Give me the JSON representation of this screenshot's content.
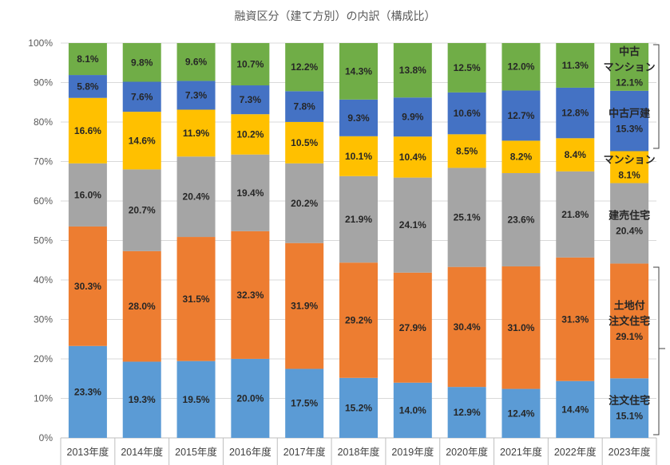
{
  "chart_data": {
    "type": "bar",
    "stacking": "percent",
    "title": "融資区分（建て方別）の内訳（構成比）",
    "categories": [
      "2013年度",
      "2014年度",
      "2015年度",
      "2016年度",
      "2017年度",
      "2018年度",
      "2019年度",
      "2020年度",
      "2021年度",
      "2022年度",
      "2023年度"
    ],
    "ylim": [
      0,
      100
    ],
    "ytick_labels": [
      "0%",
      "10%",
      "20%",
      "30%",
      "40%",
      "50%",
      "60%",
      "70%",
      "80%",
      "90%",
      "100%"
    ],
    "value_unit": "%",
    "grid": true,
    "legend": "none",
    "series_label_position": "last-bar",
    "series": [
      {
        "name_lines": [
          "注文住宅"
        ],
        "color": "#5B9BD5",
        "values": [
          23.3,
          19.3,
          19.5,
          20.0,
          17.5,
          15.2,
          14.0,
          12.9,
          12.4,
          14.4,
          15.1
        ]
      },
      {
        "name_lines": [
          "土地付",
          "注文住宅"
        ],
        "color": "#ED7D31",
        "values": [
          30.3,
          28.0,
          31.5,
          32.3,
          31.9,
          29.2,
          27.9,
          30.4,
          31.0,
          31.3,
          29.1
        ]
      },
      {
        "name_lines": [
          "建売住宅"
        ],
        "color": "#A5A5A5",
        "values": [
          16.0,
          20.7,
          20.4,
          19.4,
          20.2,
          21.9,
          24.1,
          25.1,
          23.6,
          21.8,
          20.4
        ]
      },
      {
        "name_lines": [
          "マンション"
        ],
        "color": "#FFC000",
        "values": [
          16.6,
          14.6,
          11.9,
          10.2,
          10.5,
          10.1,
          10.4,
          8.5,
          8.2,
          8.4,
          8.1
        ]
      },
      {
        "name_lines": [
          "中古戸建"
        ],
        "color": "#4472C4",
        "values": [
          5.8,
          7.6,
          7.3,
          7.3,
          7.8,
          9.3,
          9.9,
          10.6,
          12.7,
          12.8,
          15.3
        ]
      },
      {
        "name_lines": [
          "中古",
          "マンション"
        ],
        "color": "#70AD47",
        "values": [
          8.1,
          9.8,
          9.6,
          10.7,
          12.2,
          14.3,
          13.8,
          12.5,
          12.0,
          11.3,
          12.1
        ]
      }
    ]
  }
}
